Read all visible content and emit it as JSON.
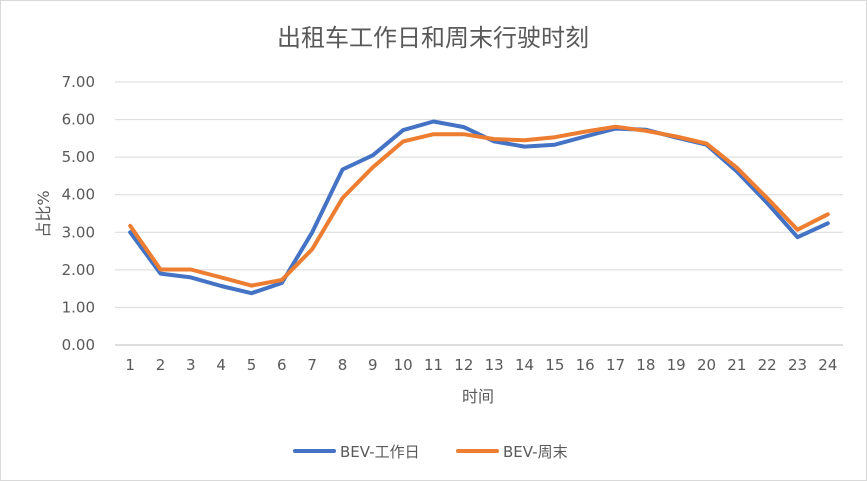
{
  "chart_data": {
    "type": "line",
    "title": "出租车工作日和周末行驶时刻",
    "xlabel": "时间",
    "ylabel": "占比%",
    "categories": [
      "1",
      "2",
      "3",
      "4",
      "5",
      "6",
      "7",
      "8",
      "9",
      "10",
      "11",
      "12",
      "13",
      "14",
      "15",
      "16",
      "17",
      "18",
      "19",
      "20",
      "21",
      "22",
      "23",
      "24"
    ],
    "ylim": [
      0,
      7
    ],
    "y_ticks": [
      "0.00",
      "1.00",
      "2.00",
      "3.00",
      "4.00",
      "5.00",
      "6.00",
      "7.00"
    ],
    "grid": true,
    "legend_position": "bottom",
    "series": [
      {
        "name": "BEV-工作日",
        "color": "#4472C4",
        "values": [
          3.0,
          1.9,
          1.8,
          1.57,
          1.38,
          1.65,
          3.0,
          4.67,
          5.05,
          5.72,
          5.95,
          5.8,
          5.42,
          5.28,
          5.33,
          5.55,
          5.76,
          5.73,
          5.52,
          5.33,
          4.62,
          3.78,
          2.87,
          3.24
        ]
      },
      {
        "name": "BEV-周末",
        "color": "#ED7D31",
        "values": [
          3.17,
          2.01,
          2.01,
          1.8,
          1.58,
          1.73,
          2.55,
          3.91,
          4.73,
          5.42,
          5.61,
          5.61,
          5.48,
          5.45,
          5.53,
          5.68,
          5.81,
          5.7,
          5.55,
          5.36,
          4.72,
          3.91,
          3.07,
          3.48
        ]
      }
    ]
  }
}
